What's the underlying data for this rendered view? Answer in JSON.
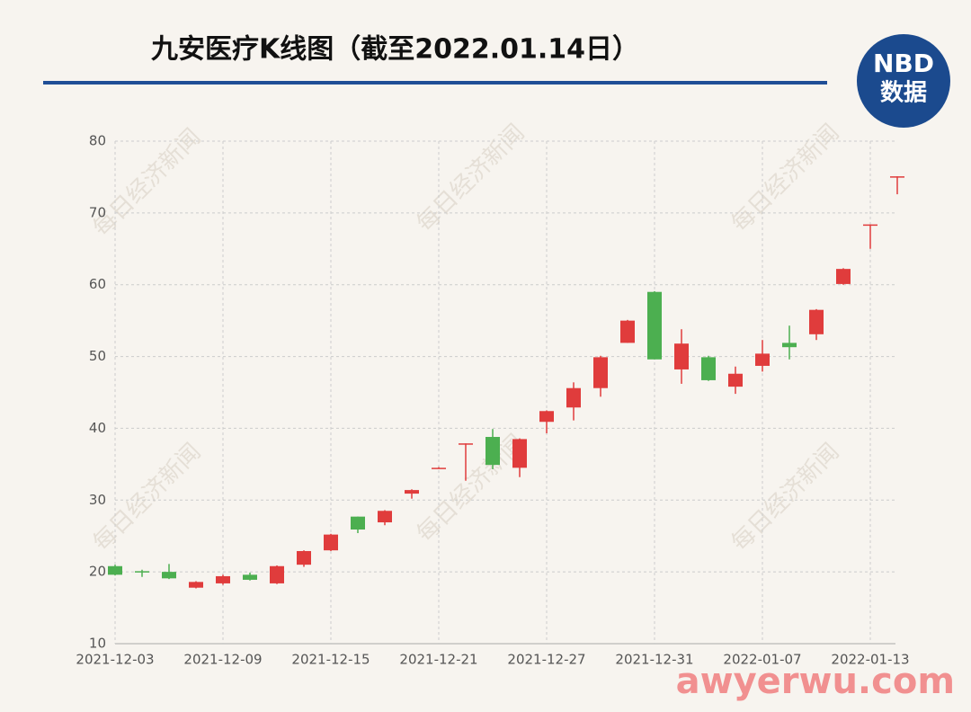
{
  "chart_data": {
    "type": "candlestick",
    "title": "九安医疗K线图（截至2022.01.14日）",
    "logo": {
      "line1": "NBD",
      "line2": "数据"
    },
    "watermark": "每日经济新闻",
    "site_watermark": "awyerwu.com",
    "categories": [
      "2021-12-03",
      null,
      null,
      null,
      "2021-12-09",
      null,
      null,
      null,
      "2021-12-15",
      null,
      null,
      null,
      "2021-12-21",
      null,
      null,
      null,
      "2021-12-27",
      null,
      null,
      null,
      "2021-12-31",
      null,
      null,
      null,
      "2022-01-07",
      null,
      null,
      null,
      "2022-01-13",
      null
    ],
    "series": [
      {
        "name": "open",
        "values": [
          20.8,
          20.1,
          20.0,
          17.8,
          18.4,
          19.6,
          18.4,
          21.0,
          23.0,
          27.7,
          26.9,
          30.9,
          34.4,
          37.8,
          38.8,
          34.5,
          40.9,
          42.9,
          45.6,
          51.9,
          59.0,
          48.2,
          49.9,
          45.8,
          48.7,
          51.9,
          53.1,
          60.1,
          68.3,
          75.0
        ]
      },
      {
        "name": "high",
        "values": [
          21.0,
          20.3,
          21.1,
          18.7,
          19.6,
          19.9,
          20.9,
          23.0,
          25.3,
          27.7,
          28.6,
          31.5,
          34.6,
          37.9,
          39.9,
          38.6,
          42.5,
          46.4,
          50.1,
          55.1,
          59.1,
          53.8,
          50.1,
          48.6,
          52.3,
          54.3,
          56.6,
          62.3,
          68.4,
          75.1
        ]
      },
      {
        "name": "low",
        "values": [
          19.5,
          19.3,
          19.0,
          17.7,
          18.2,
          18.8,
          18.3,
          20.7,
          22.9,
          25.4,
          26.5,
          30.2,
          34.4,
          32.7,
          34.3,
          33.2,
          39.3,
          41.1,
          44.4,
          51.9,
          49.6,
          46.2,
          46.6,
          44.8,
          47.9,
          49.6,
          52.3,
          60.0,
          65.0,
          72.6
        ]
      },
      {
        "name": "close",
        "values": [
          19.6,
          20.0,
          19.1,
          18.6,
          19.4,
          18.9,
          20.8,
          22.9,
          25.2,
          25.9,
          28.5,
          31.4,
          34.5,
          37.9,
          34.9,
          38.5,
          42.4,
          45.6,
          49.9,
          55.0,
          49.6,
          51.8,
          46.7,
          47.6,
          50.4,
          51.3,
          56.5,
          62.2,
          68.4,
          75.1
        ]
      }
    ],
    "up_color": "#e03c3c",
    "down_color": "#4caf50",
    "ylim": [
      10,
      80
    ],
    "yticks": [
      10,
      20,
      30,
      40,
      50,
      60,
      70,
      80
    ],
    "grid": true
  }
}
